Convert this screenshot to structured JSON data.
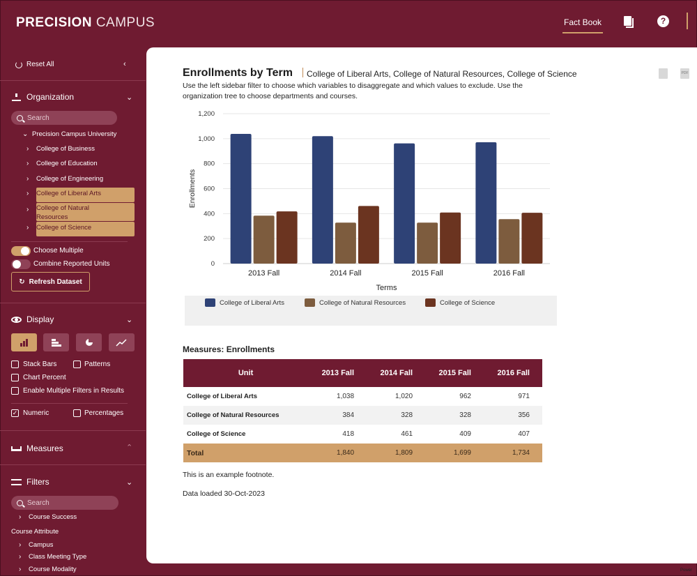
{
  "app": {
    "logo_bold": "PRECISION",
    "logo_light": "CAMPUS",
    "nav_factbook": "Fact Book",
    "help_glyph": "?",
    "power_text": "Power"
  },
  "sidebar": {
    "reset_all": "Reset All",
    "organization": {
      "title": "Organization",
      "search_placeholder": "Search",
      "root": "Precision Campus University",
      "items": [
        {
          "label": "College of Business",
          "selected": false
        },
        {
          "label": "College of Education",
          "selected": false
        },
        {
          "label": "College of Engineering",
          "selected": false
        },
        {
          "label": "College of Liberal Arts",
          "selected": true
        },
        {
          "label": "College of Natural Resources",
          "selected": true
        },
        {
          "label": "College of Science",
          "selected": true
        }
      ],
      "item_4_line1": "College of Natural",
      "item_4_line2": "Resources",
      "choose_multiple": "Choose Multiple",
      "combine_units": "Combine Reported Units",
      "refresh": "Refresh Dataset"
    },
    "display": {
      "title": "Display",
      "stack_bars": "Stack Bars",
      "patterns": "Patterns",
      "chart_percent": "Chart Percent",
      "multi_filters": "Enable Multiple Filters in Results",
      "numeric": "Numeric",
      "percentages": "Percentages",
      "check_glyph": "✓"
    },
    "measures": {
      "title": "Measures"
    },
    "filters": {
      "title": "Filters",
      "search_placeholder": "Search",
      "course_success": "Course Success",
      "course_attribute": "Course Attribute",
      "campus": "Campus",
      "class_meeting_type": "Class Meeting Type",
      "course_modality": "Course Modality"
    }
  },
  "main": {
    "title": "Enrollments by Term",
    "subtitle": "College of Liberal Arts, College of Natural Resources, College of Science",
    "description": "Use the left sidebar filter to choose which variables to disaggregate and which values to exclude. Use the organization tree to choose departments and courses.",
    "export_pdf": "PDF",
    "measures_title": "Measures: Enrollments",
    "table": {
      "headers": [
        "Unit",
        "2013 Fall",
        "2014 Fall",
        "2015 Fall",
        "2016 Fall"
      ],
      "rows": [
        [
          "College of Liberal Arts",
          "1,038",
          "1,020",
          "962",
          "971"
        ],
        [
          "College of Natural Resources",
          "384",
          "328",
          "328",
          "356"
        ],
        [
          "College of Science",
          "418",
          "461",
          "409",
          "407"
        ]
      ],
      "total": [
        "Total",
        "1,840",
        "1,809",
        "1,699",
        "1,734"
      ]
    },
    "footnote": "This is an example footnote.",
    "loaded": "Data loaded 30-Oct-2023"
  },
  "colors": {
    "brand": "#6f1b31",
    "accent": "#d0a06a",
    "liberal_arts": "#2e4276",
    "natural_resources": "#7d5c3e",
    "science": "#6b3420"
  },
  "chart_data": {
    "type": "bar",
    "title": "",
    "xlabel": "Terms",
    "ylabel": "Enrollments",
    "categories": [
      "2013 Fall",
      "2014 Fall",
      "2015 Fall",
      "2016 Fall"
    ],
    "ylim": [
      0,
      1200
    ],
    "yticks": [
      0,
      200,
      400,
      600,
      800,
      1000,
      1200
    ],
    "ytick_labels": [
      "0",
      "200",
      "400",
      "600",
      "800",
      "1,000",
      "1,200"
    ],
    "grid": true,
    "legend_position": "bottom",
    "series": [
      {
        "name": "College of Liberal Arts",
        "color": "#2e4276",
        "values": [
          1038,
          1020,
          962,
          971
        ]
      },
      {
        "name": "College of Natural Resources",
        "color": "#7d5c3e",
        "values": [
          384,
          328,
          328,
          356
        ]
      },
      {
        "name": "College of Science",
        "color": "#6b3420",
        "values": [
          418,
          461,
          409,
          407
        ]
      }
    ]
  }
}
